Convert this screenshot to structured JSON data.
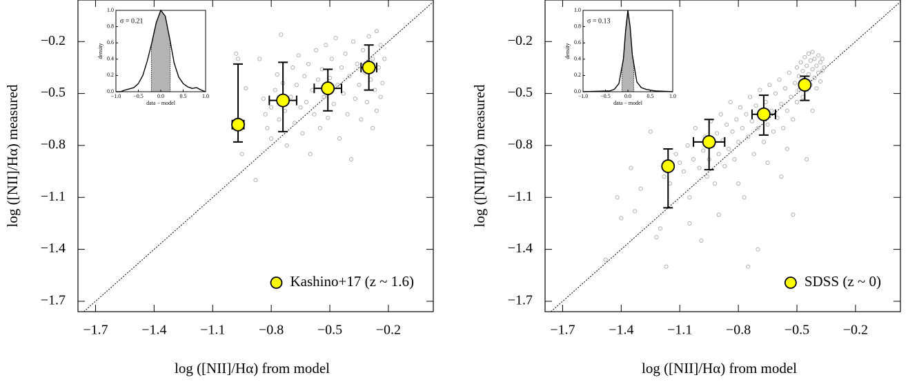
{
  "chart_data": [
    {
      "type": "scatter",
      "xlabel": "log ([NII]/Hα) from model",
      "ylabel": "log ([NII]/Hα) measured",
      "xlim": [
        -1.79,
        0.03
      ],
      "ylim": [
        -1.76,
        0.04
      ],
      "xticks": [
        {
          "value": -1.7,
          "label": "−1.7"
        },
        {
          "value": -1.4,
          "label": "−1.4"
        },
        {
          "value": -1.1,
          "label": "−1.1"
        },
        {
          "value": -0.8,
          "label": "−0.8"
        },
        {
          "value": -0.5,
          "label": "−0.5"
        },
        {
          "value": -0.2,
          "label": "−0.2"
        }
      ],
      "yticks": [
        {
          "value": -1.7,
          "label": "−1.7"
        },
        {
          "value": -1.4,
          "label": "−1.4"
        },
        {
          "value": -1.1,
          "label": "−1.1"
        },
        {
          "value": -0.8,
          "label": "−0.8"
        },
        {
          "value": -0.5,
          "label": "−0.5"
        },
        {
          "value": -0.2,
          "label": "−0.2"
        }
      ],
      "legend": "lower right",
      "series": [
        {
          "color": "#b0b0b0",
          "x": [
            -0.98,
            -0.97,
            -0.95,
            -0.93,
            -0.88,
            -0.86,
            -0.84,
            -0.83,
            -0.82,
            -0.8,
            -0.8,
            -0.78,
            -0.77,
            -0.76,
            -0.75,
            -0.74,
            -0.73,
            -0.72,
            -0.7,
            -0.69,
            -0.68,
            -0.67,
            -0.66,
            -0.65,
            -0.64,
            -0.63,
            -0.62,
            -0.61,
            -0.6,
            -0.59,
            -0.58,
            -0.57,
            -0.56,
            -0.55,
            -0.54,
            -0.53,
            -0.52,
            -0.51,
            -0.5,
            -0.49,
            -0.48,
            -0.47,
            -0.46,
            -0.45,
            -0.44,
            -0.43,
            -0.42,
            -0.41,
            -0.4,
            -0.39,
            -0.38,
            -0.37,
            -0.36,
            -0.35,
            -0.34,
            -0.33,
            -0.32,
            -0.31,
            -0.3,
            -0.29,
            -0.28,
            -0.27,
            -0.26,
            -0.26,
            -0.25,
            -0.24,
            -0.23,
            -0.22,
            -0.24,
            -0.28
          ],
          "values": [
            -0.27,
            -0.3,
            -0.85,
            -0.47,
            -1.0,
            -0.3,
            -0.53,
            -0.62,
            -0.7,
            -0.58,
            -0.76,
            -0.48,
            -0.39,
            -0.65,
            -0.16,
            -0.44,
            -0.6,
            -0.8,
            -0.52,
            -0.35,
            -0.67,
            -0.45,
            -0.28,
            -0.58,
            -0.73,
            -0.4,
            -0.55,
            -0.33,
            -0.85,
            -0.48,
            -0.62,
            -0.25,
            -0.42,
            -0.7,
            -0.36,
            -0.52,
            -0.22,
            -0.64,
            -0.41,
            -0.3,
            -0.56,
            -0.18,
            -0.45,
            -0.76,
            -0.35,
            -0.5,
            -0.27,
            -0.62,
            -0.4,
            -0.88,
            -0.2,
            -0.53,
            -0.33,
            -0.45,
            -0.65,
            -0.25,
            -0.38,
            -0.55,
            -0.17,
            -0.42,
            -0.3,
            -0.48,
            -0.14,
            -0.6,
            -0.35,
            -0.22,
            -0.44,
            -0.3,
            -0.52,
            -0.7
          ]
        },
        {
          "name": "Kashino+17 (z ~ 1.6)",
          "color": "#ffff00",
          "x": [
            -0.97,
            -0.74,
            -0.51,
            -0.3
          ],
          "values": [
            -0.68,
            -0.54,
            -0.47,
            -0.35
          ],
          "x_err": [
            0.03,
            0.07,
            0.07,
            0.04
          ],
          "y_err_low": [
            0.1,
            0.18,
            0.13,
            0.13
          ],
          "y_err_high": [
            0.35,
            0.22,
            0.11,
            0.13
          ]
        }
      ],
      "inset": {
        "type": "line",
        "annotation": "σ = 0.21",
        "xlabel": "data − model",
        "ylabel": "density",
        "xlim": [
          -1,
          1
        ],
        "ylim": [
          0,
          1
        ],
        "xticks": [
          {
            "value": -1,
            "label": "−1.0"
          },
          {
            "value": -0.5,
            "label": "−0.5"
          },
          {
            "value": 0,
            "label": "0.0"
          },
          {
            "value": 0.5,
            "label": "0.5"
          },
          {
            "value": 1,
            "label": "1.0"
          }
        ],
        "yticks": [
          {
            "value": 0,
            "label": "0.0"
          },
          {
            "value": 0.2,
            "label": "0.2"
          },
          {
            "value": 0.4,
            "label": "0.4"
          },
          {
            "value": 0.6,
            "label": "0.6"
          },
          {
            "value": 0.8,
            "label": "0.8"
          },
          {
            "value": 1,
            "label": "1.0"
          }
        ],
        "shade": [
          -0.21,
          0.21
        ],
        "shade_color": "#b4b4b4",
        "x": [
          -1,
          -0.9,
          -0.8,
          -0.6,
          -0.5,
          -0.4,
          -0.3,
          -0.2,
          -0.1,
          0,
          0.1,
          0.2,
          0.3,
          0.4,
          0.5,
          0.6,
          0.7,
          0.8,
          0.9,
          1
        ],
        "values": [
          0,
          0,
          0.02,
          0.05,
          0.1,
          0.2,
          0.38,
          0.6,
          0.85,
          1,
          0.93,
          0.65,
          0.35,
          0.18,
          0.1,
          0.06,
          0.04,
          0.05,
          0.02,
          0
        ]
      }
    },
    {
      "type": "scatter",
      "xlabel": "log ([NII]/Hα) from model",
      "ylabel": "log ([NII]/Hα) measured",
      "xlim": [
        -1.79,
        0.03
      ],
      "ylim": [
        -1.76,
        0.04
      ],
      "xticks": [
        {
          "value": -1.7,
          "label": "−1.7"
        },
        {
          "value": -1.4,
          "label": "−1.4"
        },
        {
          "value": -1.1,
          "label": "−1.1"
        },
        {
          "value": -0.8,
          "label": "−0.8"
        },
        {
          "value": -0.5,
          "label": "−0.5"
        },
        {
          "value": -0.2,
          "label": "−0.2"
        }
      ],
      "yticks": [
        {
          "value": -1.7,
          "label": "−1.7"
        },
        {
          "value": -1.4,
          "label": "−1.4"
        },
        {
          "value": -1.1,
          "label": "−1.1"
        },
        {
          "value": -0.8,
          "label": "−0.8"
        },
        {
          "value": -0.5,
          "label": "−0.5"
        },
        {
          "value": -0.2,
          "label": "−0.2"
        }
      ],
      "legend": "lower right",
      "series": [
        {
          "color": "#b0b0b0",
          "x": [
            -1.48,
            -1.42,
            -1.4,
            -1.35,
            -1.33,
            -1.3,
            -1.25,
            -1.22,
            -1.2,
            -1.18,
            -1.15,
            -1.12,
            -1.1,
            -1.08,
            -1.06,
            -1.05,
            -1.03,
            -1.02,
            -1.0,
            -0.99,
            -0.98,
            -0.97,
            -0.96,
            -0.95,
            -0.94,
            -0.93,
            -0.92,
            -0.91,
            -0.9,
            -0.89,
            -0.88,
            -0.87,
            -0.86,
            -0.85,
            -0.84,
            -0.83,
            -0.82,
            -0.81,
            -0.8,
            -0.79,
            -0.78,
            -0.77,
            -0.76,
            -0.75,
            -0.74,
            -0.73,
            -0.72,
            -0.71,
            -0.7,
            -0.69,
            -0.68,
            -0.67,
            -0.66,
            -0.65,
            -0.64,
            -0.63,
            -0.62,
            -0.61,
            -0.6,
            -0.59,
            -0.58,
            -0.57,
            -0.56,
            -0.55,
            -0.54,
            -0.53,
            -0.52,
            -0.51,
            -0.5,
            -0.5,
            -0.49,
            -0.49,
            -0.48,
            -0.48,
            -0.47,
            -0.47,
            -0.46,
            -0.46,
            -0.45,
            -0.45,
            -0.44,
            -0.44,
            -0.43,
            -0.43,
            -0.42,
            -0.42,
            -0.41,
            -0.41,
            -0.4,
            -0.4,
            -0.39,
            -0.39,
            -0.38,
            -0.38,
            -0.37,
            -0.37,
            -0.36,
            -0.45,
            -0.42,
            -0.52,
            -0.75,
            -0.7,
            -0.9,
            -1.05,
            -0.58,
            -0.65,
            -0.55,
            -1.17,
            -0.8
          ],
          "values": [
            -1.46,
            -1.1,
            -1.22,
            -0.93,
            -1.18,
            -1.05,
            -0.72,
            -1.33,
            -1.28,
            -0.98,
            -1.02,
            -0.85,
            -0.9,
            -0.95,
            -0.8,
            -1.1,
            -0.88,
            -0.7,
            -0.93,
            -1.35,
            -0.83,
            -0.75,
            -0.98,
            -0.88,
            -0.66,
            -0.8,
            -1.02,
            -0.73,
            -0.85,
            -0.62,
            -0.77,
            -0.92,
            -0.68,
            -0.82,
            -0.55,
            -0.72,
            -0.88,
            -0.65,
            -0.78,
            -0.58,
            -0.7,
            -1.1,
            -0.62,
            -0.75,
            -0.52,
            -0.66,
            -0.85,
            -0.57,
            -0.7,
            -0.48,
            -0.63,
            -0.78,
            -0.55,
            -0.68,
            -0.45,
            -0.6,
            -0.72,
            -0.5,
            -0.64,
            -0.42,
            -0.56,
            -0.7,
            -0.47,
            -0.6,
            -0.38,
            -0.52,
            -0.65,
            -0.44,
            -0.55,
            -0.35,
            -0.48,
            -0.4,
            -0.32,
            -0.44,
            -0.52,
            -0.37,
            -0.29,
            -0.42,
            -0.34,
            -0.48,
            -0.27,
            -0.39,
            -0.31,
            -0.45,
            -0.36,
            -0.26,
            -0.41,
            -0.3,
            -0.34,
            -0.47,
            -0.28,
            -0.38,
            -0.32,
            -0.43,
            -0.3,
            -0.37,
            -0.35,
            -0.88,
            -0.6,
            -1.2,
            -1.5,
            -1.4,
            -1.2,
            -1.25,
            -0.98,
            -0.9,
            -0.82,
            -1.5,
            -1.02
          ]
        },
        {
          "name": "SDSS (z ~ 0)",
          "color": "#ffff00",
          "x": [
            -1.16,
            -0.95,
            -0.67,
            -0.46
          ],
          "values": [
            -0.92,
            -0.78,
            -0.62,
            -0.45
          ],
          "x_err": [
            0.01,
            0.08,
            0.06,
            0.02
          ],
          "y_err_low": [
            0.24,
            0.16,
            0.12,
            0.09
          ],
          "y_err_high": [
            0.1,
            0.13,
            0.11,
            0.05
          ]
        }
      ],
      "inset": {
        "type": "line",
        "annotation": "σ = 0.13",
        "xlabel": "data − model",
        "ylabel": "density",
        "xlim": [
          -1,
          1
        ],
        "ylim": [
          0,
          1
        ],
        "xticks": [
          {
            "value": -1,
            "label": "−1.0"
          },
          {
            "value": -0.5,
            "label": "−0.5"
          },
          {
            "value": 0,
            "label": "0.0"
          },
          {
            "value": 0.5,
            "label": "0.5"
          },
          {
            "value": 1,
            "label": "1.0"
          }
        ],
        "yticks": [
          {
            "value": 0,
            "label": "0.0"
          },
          {
            "value": 0.2,
            "label": "0.2"
          },
          {
            "value": 0.4,
            "label": "0.4"
          },
          {
            "value": 0.6,
            "label": "0.6"
          },
          {
            "value": 0.8,
            "label": "0.8"
          },
          {
            "value": 1,
            "label": "1.0"
          }
        ],
        "shade": [
          -0.13,
          0.13
        ],
        "shade_color": "#b4b4b4",
        "x": [
          -1,
          -0.4,
          -0.3,
          -0.2,
          -0.1,
          -0.05,
          0,
          0.05,
          0.1,
          0.2,
          0.3,
          0.4,
          0.5,
          0.6,
          1
        ],
        "values": [
          0,
          0.01,
          0.03,
          0.1,
          0.4,
          0.75,
          1,
          0.8,
          0.45,
          0.12,
          0.05,
          0.03,
          0.02,
          0.01,
          0
        ]
      }
    }
  ]
}
